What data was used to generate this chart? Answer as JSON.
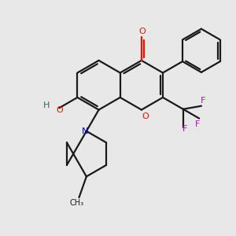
{
  "bg_color": "#e8e8e8",
  "bond_color": "#1a1a1a",
  "o_color": "#ee1100",
  "n_color": "#0000cc",
  "f_color": "#cc00cc",
  "h_color": "#336655",
  "line_width": 1.6,
  "figsize": [
    3.0,
    3.0
  ],
  "dpi": 100,
  "xlim": [
    0.0,
    10.0
  ],
  "ylim": [
    0.0,
    10.0
  ],
  "font_size": 7.5
}
